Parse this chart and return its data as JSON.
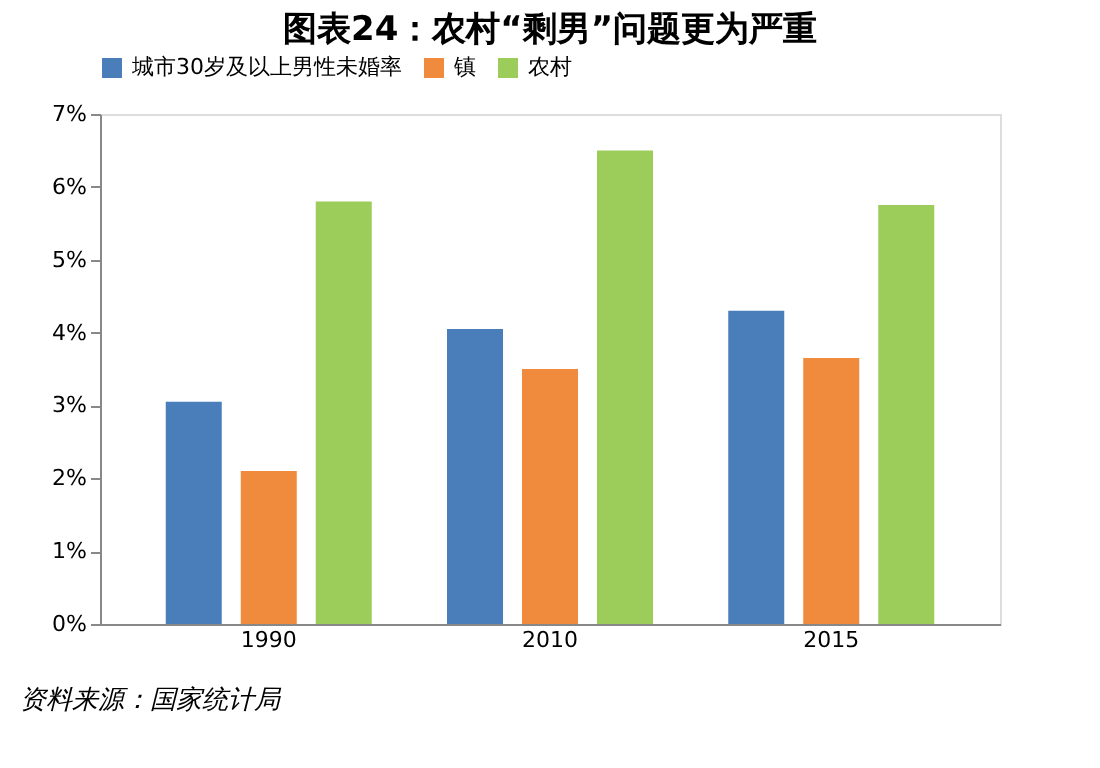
{
  "chart_data": {
    "type": "bar",
    "title": "图表24：农村“剩男”问题更为严重",
    "categories": [
      "1990",
      "2010",
      "2015"
    ],
    "series": [
      {
        "name": "城市30岁及以上男性未婚率",
        "color": "#4a7ebb",
        "values": [
          3.05,
          4.05,
          4.3
        ]
      },
      {
        "name": "镇",
        "color": "#f08a3c",
        "values": [
          2.1,
          3.5,
          3.65
        ]
      },
      {
        "name": "农村",
        "color": "#9ccc5a",
        "values": [
          5.8,
          6.5,
          5.75
        ]
      }
    ],
    "ylim": [
      0,
      7
    ],
    "yticks": [
      {
        "value": 0,
        "label": "0%"
      },
      {
        "value": 1,
        "label": "1%"
      },
      {
        "value": 2,
        "label": "2%"
      },
      {
        "value": 3,
        "label": "3%"
      },
      {
        "value": 4,
        "label": "4%"
      },
      {
        "value": 5,
        "label": "5%"
      },
      {
        "value": 6,
        "label": "6%"
      },
      {
        "value": 7,
        "label": "7%"
      }
    ],
    "grid": false,
    "legend": "top",
    "annotations": [
      "资料来源：国家统计局"
    ]
  }
}
